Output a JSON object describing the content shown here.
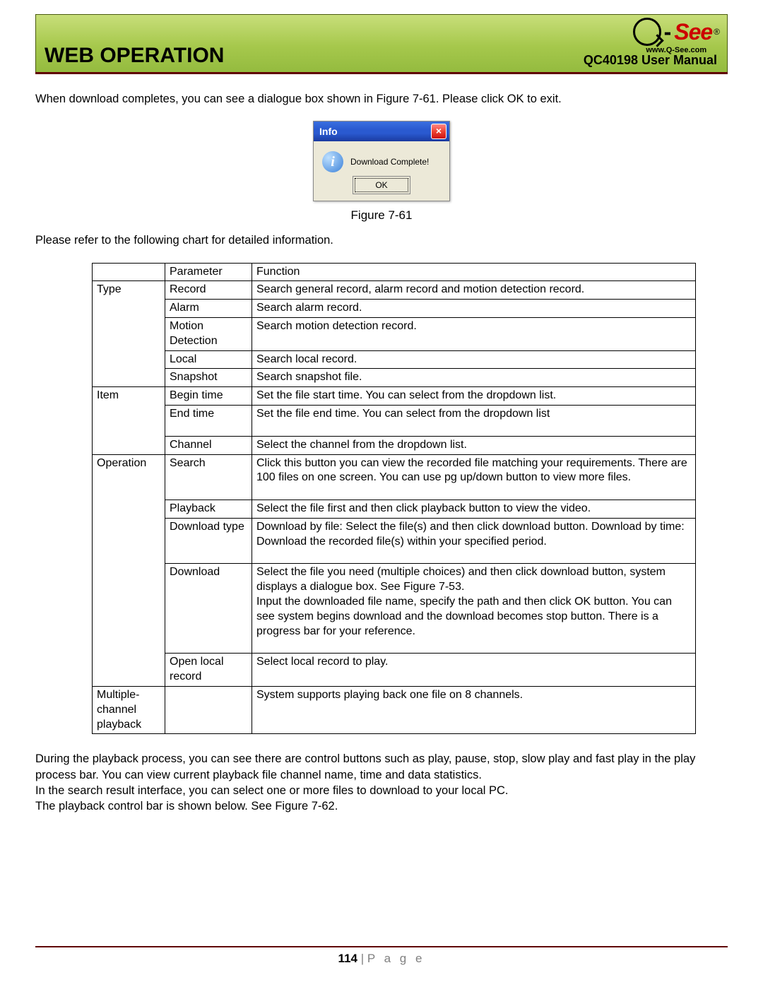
{
  "header": {
    "section_title": "WEB OPERATION",
    "manual_title": "QC40198 User Manual",
    "logo_text": "-See",
    "logo_url": "www.Q-See.com",
    "green_gradient_top": "#c8de7a",
    "green_gradient_bottom": "#94bb3f",
    "rule_color": "#600000"
  },
  "intro_text": "When download completes, you can see a dialogue box shown in Figure 7-61. Please click OK to exit.",
  "dialog": {
    "title": "Info",
    "message": "Download Complete!",
    "button": "OK",
    "titlebar_color": "#2a5ad0",
    "close_color": "#e43",
    "body_bg": "#ece9d8"
  },
  "figure_caption": "Figure 7-61",
  "chart_intro": "Please refer to the following chart for detailed information.",
  "table": {
    "header": {
      "parameter": "Parameter",
      "function": "Function"
    },
    "groups": [
      {
        "category": "Type",
        "rows": [
          {
            "param": "Record",
            "func": "Search general record, alarm record and motion detection record."
          },
          {
            "param": "Alarm",
            "func": "Search alarm record."
          },
          {
            "param": "Motion Detection",
            "func": "Search motion detection record."
          },
          {
            "param": "Local",
            "func": "Search local record."
          },
          {
            "param": "Snapshot",
            "func": "Search snapshot file."
          }
        ]
      },
      {
        "category": "Item",
        "rows": [
          {
            "param": "Begin time",
            "func": "Set the file start time. You can select from the dropdown list."
          },
          {
            "param": "End time",
            "func": "Set the file end time. You can select from the dropdown list"
          },
          {
            "param": "Channel",
            "func": "Select the channel from the dropdown list."
          }
        ]
      },
      {
        "category": "Operation",
        "rows": [
          {
            "param": "Search",
            "func": "Click this button you can view the recorded file matching your requirements. There are 100 files on one screen. You can use pg up/down button to view more files."
          },
          {
            "param": "Playback",
            "func": "Select the file first and then click playback button to view the video."
          },
          {
            "param": "Download type",
            "func": "Download by file: Select the file(s) and then click download button. Download by time: Download the recorded file(s) within your specified period."
          },
          {
            "param": "Download",
            "func": "Select the file you need (multiple choices) and then click download button, system displays a dialogue box. See Figure 7-53.\nInput the downloaded file name, specify the path and then click OK button. You can see system begins download and the download becomes stop button. There is a progress bar for your reference."
          },
          {
            "param": "Open local record",
            "func": "Select local record to play."
          }
        ]
      },
      {
        "category": "Multiple-channel playback",
        "rows": [
          {
            "param": "",
            "func": "System supports playing back one file on 8 channels."
          }
        ]
      }
    ]
  },
  "after_table": "During the playback process, you can see there are control buttons such as play, pause, stop, slow play and fast play in the play process bar. You can view current playback file channel name, time and data statistics.\nIn the search result interface, you can select one or more files to download to your local PC.\nThe playback control bar is shown below. See Figure 7-62.",
  "footer": {
    "page_number": "114",
    "page_label": "P a g e"
  }
}
